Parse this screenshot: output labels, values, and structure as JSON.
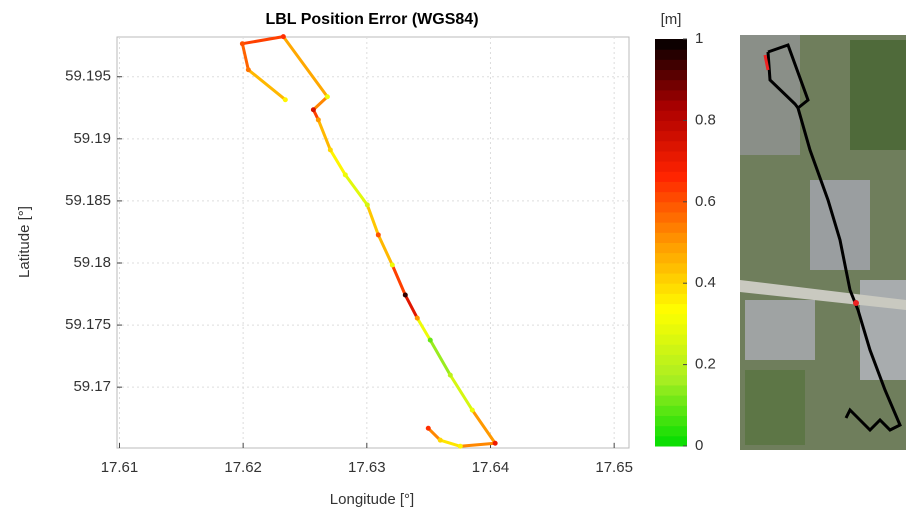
{
  "chart_data": {
    "type": "trajectory",
    "title": "LBL Position Error (WGS84)",
    "x_label": "Longitude [°]",
    "y_label": "Latitude [°]",
    "x": [
      17.62341,
      17.62042,
      17.61994,
      17.62325,
      17.62681,
      17.62568,
      17.62608,
      17.62705,
      17.62826,
      17.63004,
      17.63093,
      17.63206,
      17.63311,
      17.63408,
      17.63513,
      17.63675,
      17.63853,
      17.64038,
      17.63756,
      17.63594,
      17.63497
    ],
    "y": [
      59.19315,
      59.19556,
      59.19766,
      59.19823,
      59.19339,
      59.19234,
      59.19153,
      59.18911,
      59.1871,
      59.18468,
      59.18226,
      59.17984,
      59.17742,
      59.17556,
      59.17379,
      59.17097,
      59.16815,
      59.16548,
      59.16524,
      59.16573,
      59.16669
    ],
    "values": [
      0.35,
      0.55,
      0.6,
      0.65,
      0.3,
      0.75,
      0.5,
      0.4,
      0.3,
      0.25,
      0.6,
      0.3,
      0.95,
      0.5,
      0.1,
      0.2,
      0.3,
      0.7,
      0.35,
      0.4,
      0.65
    ],
    "xlim": [
      17.6098,
      17.6512
    ],
    "ylim": [
      59.1651,
      59.1982
    ],
    "xticks": [
      17.61,
      17.62,
      17.63,
      17.64,
      17.65
    ],
    "yticks": [
      59.17,
      59.175,
      59.18,
      59.185,
      59.19,
      59.195
    ],
    "grid": true,
    "colorbar": {
      "label": "[m]",
      "lim": [
        0,
        1
      ],
      "ticks": [
        0,
        0.2,
        0.4,
        0.6,
        0.8,
        1
      ],
      "colormap": [
        "#00dd00",
        "#aaee22",
        "#ffff00",
        "#ff9900",
        "#ff2200",
        "#aa0000",
        "#000000"
      ]
    }
  }
}
